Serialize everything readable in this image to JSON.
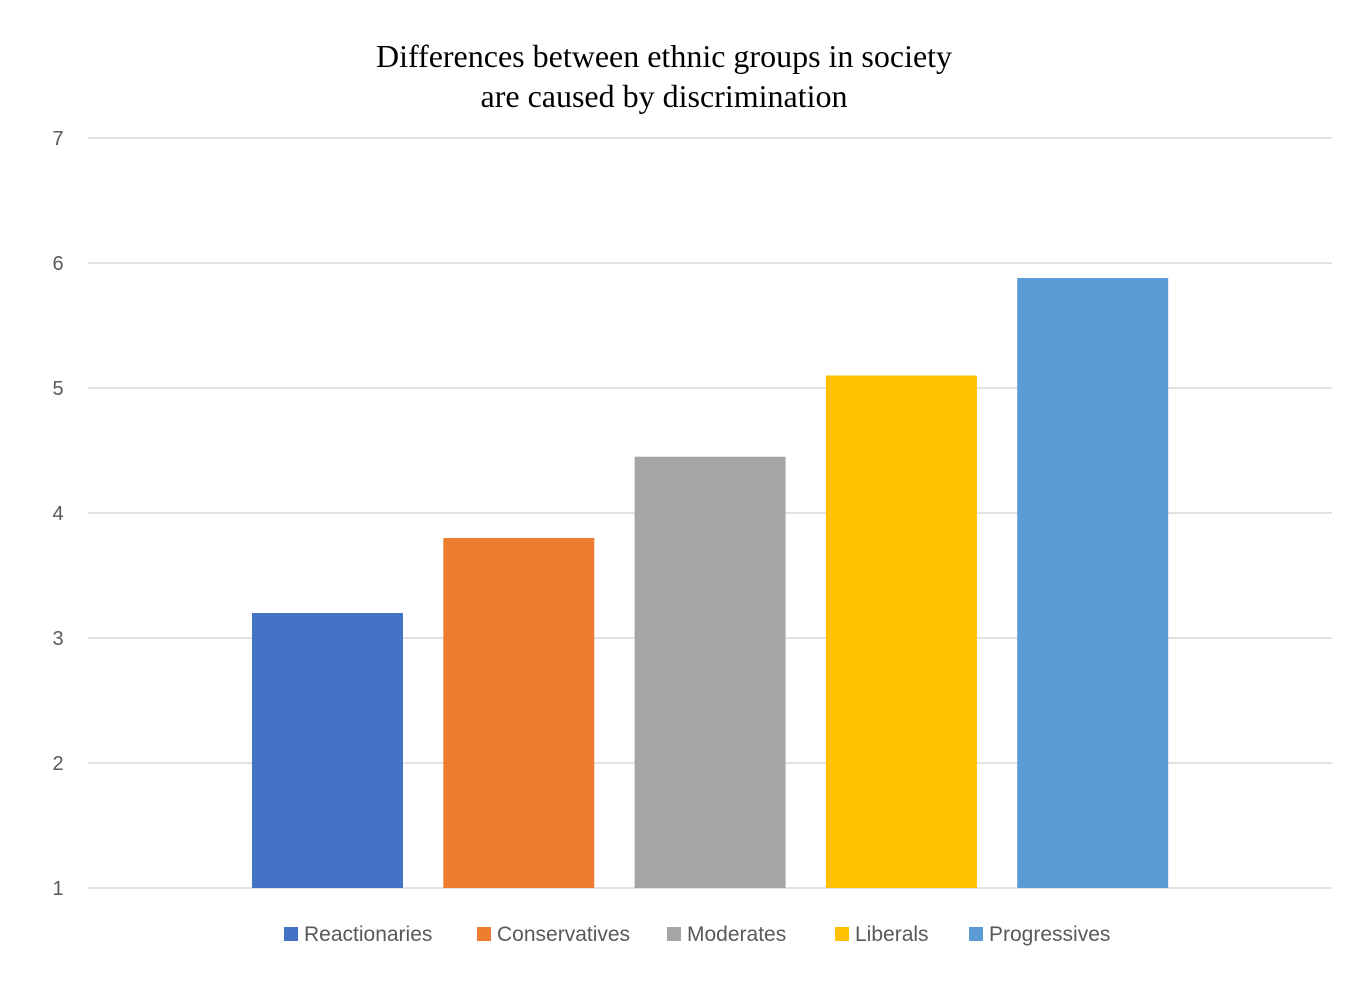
{
  "chart_data": {
    "type": "bar",
    "title_lines": [
      "Differences between ethnic groups in society",
      "are caused by discrimination"
    ],
    "xlabel": "",
    "ylabel": "",
    "ylim": [
      1,
      7
    ],
    "yticks": [
      1,
      2,
      3,
      4,
      5,
      6,
      7
    ],
    "grid": true,
    "legend_position": "bottom",
    "series": [
      {
        "name": "Reactionaries",
        "value": 3.2,
        "color": "#4472C4"
      },
      {
        "name": "Conservatives",
        "value": 3.8,
        "color": "#ED7D31"
      },
      {
        "name": "Moderates",
        "value": 4.45,
        "color": "#A5A5A5"
      },
      {
        "name": "Liberals",
        "value": 5.1,
        "color": "#FFC000"
      },
      {
        "name": "Progressives",
        "value": 5.88,
        "color": "#5B9BD5"
      }
    ]
  }
}
